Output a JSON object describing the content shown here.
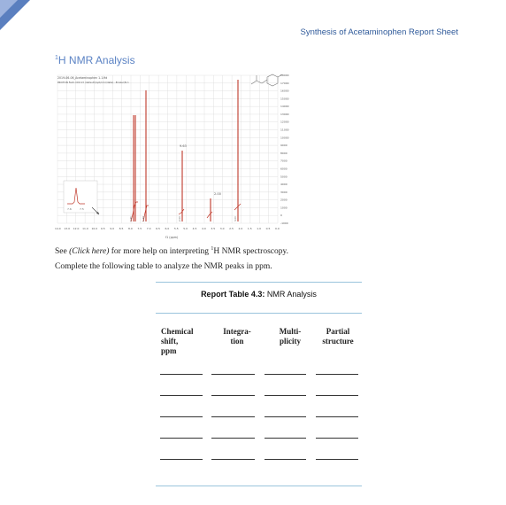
{
  "header": {
    "title": "Synthesis of Acetaminophen Report Sheet"
  },
  "section": {
    "title_prefix": "1",
    "title_text": "H NMR Analysis"
  },
  "spectrum": {
    "file_label": "2019-06-06_Acetaminophen 1.1.fid",
    "path_label": "PROTON Felm CDC13 (default)/opt/nmr/data/...Bruker/N 1",
    "x_axis_unit": "f1 (ppm)",
    "x_ticks": [
      "14.0",
      "13.0",
      "12.0",
      "11.0",
      "10.0",
      "9.5",
      "9.0",
      "8.5",
      "8.0",
      "7.5",
      "7.0",
      "6.5",
      "6.0",
      "5.5",
      "5.0",
      "4.5",
      "4.0",
      "3.5",
      "3.0",
      "2.5",
      "2.0",
      "1.5",
      "1.0",
      "0.5",
      "0.0"
    ],
    "y_ticks": [
      "18000",
      "17000",
      "16000",
      "15000",
      "14000",
      "13000",
      "12000",
      "11000",
      "10000",
      "9000",
      "8000",
      "7000",
      "6000",
      "5000",
      "4000",
      "3000",
      "2000",
      "1000",
      "0",
      "-1000"
    ],
    "peak_label_a": "9.63",
    "peak_label_b": "2.00",
    "integral_labels": [
      "0.91",
      "1.99",
      "2.00",
      "3.00"
    ],
    "inset_labels": [
      "7.6",
      "7.5"
    ],
    "colors": {
      "peak": "#c0392b",
      "grid": "#d9d9d9",
      "integral": "#c0392b"
    }
  },
  "help": {
    "see": "See ",
    "link": "(Click here)",
    "rest_1": " for more help on interpreting ",
    "sup": "1",
    "rest_2": "H NMR spectroscopy."
  },
  "instructions": "Complete the following table to analyze the NMR peaks in ppm.",
  "table": {
    "caption_bold": "Report Table 4.3:",
    "caption_text": " NMR Analysis",
    "columns": [
      {
        "line1": "Chemical",
        "line2": "shift,",
        "line3": "ppm"
      },
      {
        "line1": "Integra-",
        "line2": "tion",
        "line3": ""
      },
      {
        "line1": "Multi-",
        "line2": "plicity",
        "line3": ""
      },
      {
        "line1": "Partial",
        "line2": "structure",
        "line3": ""
      }
    ]
  }
}
